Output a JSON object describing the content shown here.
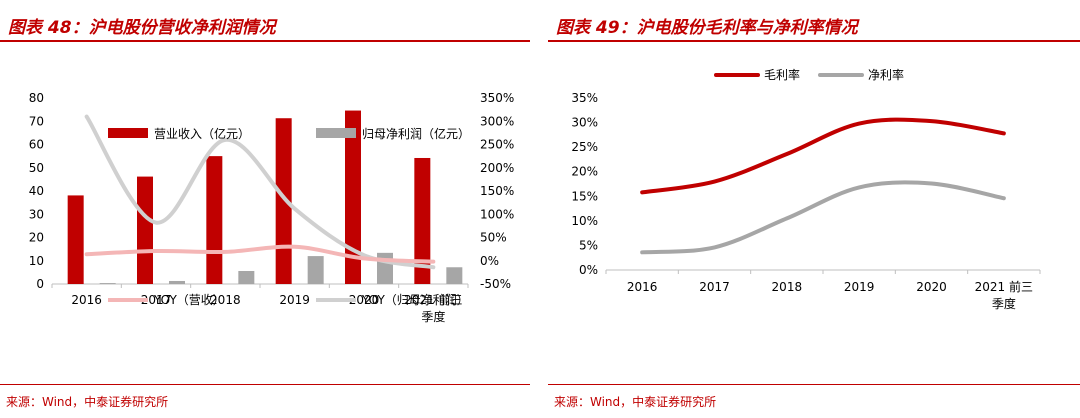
{
  "left": {
    "title": "图表 48：沪电股份营收净利润情况",
    "source": "来源：Wind，中泰证券研究所",
    "chart_data": {
      "type": "bar",
      "categories": [
        "2016",
        "2017",
        "2018",
        "2019",
        "2020",
        "2021 前三季度"
      ],
      "category_lines": [
        [
          "2016"
        ],
        [
          "2017"
        ],
        [
          "2018"
        ],
        [
          "2019"
        ],
        [
          "2020"
        ],
        [
          "2021 前三",
          "季度"
        ]
      ],
      "series": [
        {
          "name": "营业收入（亿元）",
          "type": "bar",
          "axis": "left",
          "color": "#c00000",
          "values": [
            38.1,
            46.2,
            55.0,
            71.3,
            74.6,
            54.2
          ]
        },
        {
          "name": "归母净利润（亿元）",
          "type": "bar",
          "axis": "left",
          "color": "#a6a6a6",
          "values": [
            0.4,
            1.3,
            5.6,
            12.0,
            13.4,
            7.2
          ]
        },
        {
          "name": "YOY（营收）",
          "type": "line",
          "axis": "right",
          "color": "#f4b6b6",
          "values": [
            0.14,
            0.21,
            0.19,
            0.3,
            0.05,
            -0.02
          ]
        },
        {
          "name": "YOY（归母净利润）",
          "type": "line",
          "axis": "right",
          "color": "#d0d0d0",
          "values": [
            3.1,
            0.82,
            2.6,
            1.12,
            0.12,
            -0.14
          ]
        }
      ],
      "yleft_ticks": [
        "0",
        "10",
        "20",
        "30",
        "40",
        "50",
        "60",
        "70",
        "80"
      ],
      "yright_ticks": [
        "-50%",
        "0%",
        "50%",
        "100%",
        "150%",
        "200%",
        "250%",
        "300%",
        "350%"
      ],
      "yleft_lim": [
        0,
        80
      ],
      "yright_lim": [
        -0.5,
        3.5
      ]
    }
  },
  "right": {
    "title": "图表 49：沪电股份毛利率与净利率情况",
    "source": "来源：Wind，中泰证券研究所",
    "chart_data": {
      "type": "line",
      "categories": [
        "2016",
        "2017",
        "2018",
        "2019",
        "2020",
        "2021 前三季度"
      ],
      "category_lines": [
        [
          "2016"
        ],
        [
          "2017"
        ],
        [
          "2018"
        ],
        [
          "2019"
        ],
        [
          "2020"
        ],
        [
          "2021 前三",
          "季度"
        ]
      ],
      "series": [
        {
          "name": "毛利率",
          "color": "#c00000",
          "values": [
            0.158,
            0.18,
            0.236,
            0.298,
            0.303,
            0.278
          ]
        },
        {
          "name": "净利率",
          "color": "#a6a6a6",
          "values": [
            0.036,
            0.046,
            0.105,
            0.168,
            0.176,
            0.146
          ]
        }
      ],
      "y_ticks": [
        "0%",
        "5%",
        "10%",
        "15%",
        "20%",
        "25%",
        "30%",
        "35%"
      ],
      "ylim": [
        0,
        0.35
      ],
      "legend_position": "top"
    }
  }
}
